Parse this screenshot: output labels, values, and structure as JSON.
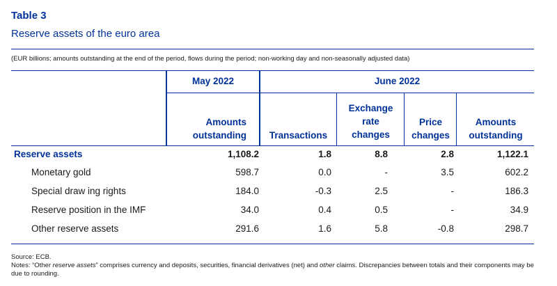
{
  "title": "Table 3",
  "subtitle": "Reserve assets of the euro area",
  "units_note": "(EUR billions; amounts outstanding at the end of the period, flows during the period; non-working day and non-seasonally adjusted data)",
  "header": {
    "may": "May 2022",
    "june": "June 2022",
    "col_amounts_may": [
      "Amounts",
      "outstanding"
    ],
    "col_transactions": [
      "Transactions"
    ],
    "col_exchange": [
      "Exchange",
      "rate",
      "changes"
    ],
    "col_price": [
      "Price",
      "changes"
    ],
    "col_amounts_june": [
      "Amounts",
      "outstanding"
    ]
  },
  "rows": [
    {
      "label": "Reserve assets",
      "bold": true,
      "values": [
        "1,108.2",
        "1.8",
        "8.8",
        "2.8",
        "1,122.1"
      ]
    },
    {
      "label": "Monetary gold",
      "values": [
        "598.7",
        "0.0",
        "-",
        "3.5",
        "602.2"
      ]
    },
    {
      "label": "Special draw ing rights",
      "values": [
        "184.0",
        "-0.3",
        "2.5",
        "-",
        "186.3"
      ]
    },
    {
      "label": "Reserve position in the IMF",
      "values": [
        "34.0",
        "0.4",
        "0.5",
        "-",
        "34.9"
      ]
    },
    {
      "label": "Other reserve assets",
      "values": [
        "291.6",
        "1.6",
        "5.8",
        "-0.8",
        "298.7"
      ]
    }
  ],
  "footnotes": {
    "source": "Source: ECB.",
    "notes_a": "Notes: “Other ",
    "notes_italic1": "reserve assets",
    "notes_b": "” comprises currency and deposits, securities, financial derivatives (net) and ",
    "notes_italic2": "other",
    "notes_c": " claims. Discrepancies between totals and their components may be due to rounding."
  }
}
